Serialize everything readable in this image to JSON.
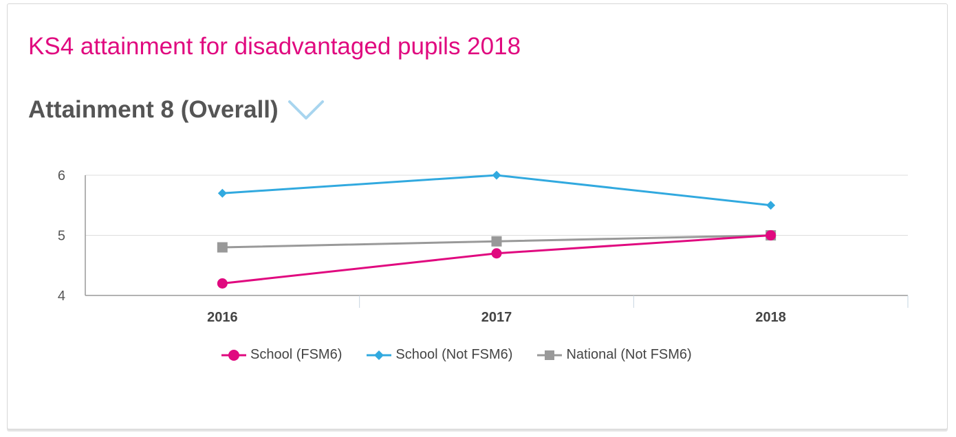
{
  "header": {
    "title": "KS4 attainment for disadvantaged pupils 2018",
    "measure_label": "Attainment 8 (Overall)",
    "dropdown_icon": "chevron-down-icon"
  },
  "colors": {
    "title": "#e0097f",
    "series_fsm6": "#e0097f",
    "series_not_fsm6": "#31a9df",
    "series_national": "#999999",
    "chevron": "#a8d5ef"
  },
  "chart_data": {
    "type": "line",
    "x": [
      "2016",
      "2017",
      "2018"
    ],
    "series": [
      {
        "name": "School (FSM6)",
        "values": [
          4.2,
          4.7,
          5.0
        ],
        "color": "#e0097f",
        "marker": "circle"
      },
      {
        "name": "School (Not FSM6)",
        "values": [
          5.7,
          6.0,
          5.5
        ],
        "color": "#31a9df",
        "marker": "diamond"
      },
      {
        "name": "National (Not FSM6)",
        "values": [
          4.8,
          4.9,
          5.0
        ],
        "color": "#999999",
        "marker": "square"
      }
    ],
    "ylim": [
      4,
      6
    ],
    "yticks": [
      "4",
      "5",
      "6"
    ],
    "xlabel": "",
    "ylabel": "",
    "grid": true,
    "legend_position": "bottom"
  }
}
